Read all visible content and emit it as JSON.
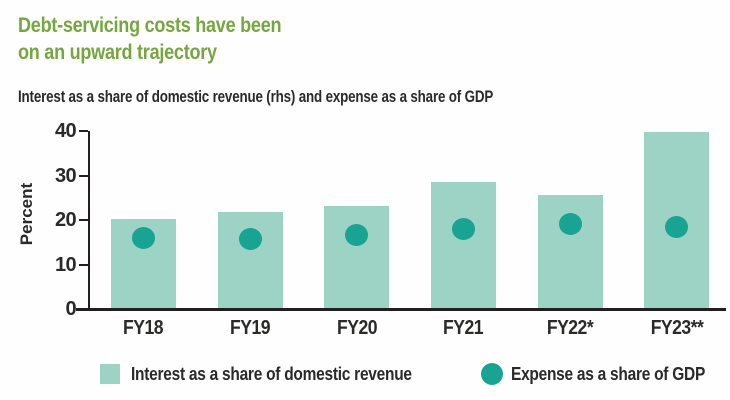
{
  "header": {
    "title": "Debt-servicing costs have been\non an upward trajectory",
    "subtitle": "Interest as a share of domestic revenue (rhs) and expense as a share of GDP"
  },
  "colors": {
    "title_green": "#76a63f",
    "bar_fill": "#9dd3c4",
    "dot_fill": "#18a392",
    "axis": "#231f20",
    "text": "#2b2a29"
  },
  "chart_data": {
    "type": "bar",
    "categories": [
      "FY18",
      "FY19",
      "FY20",
      "FY21",
      "FY22*",
      "FY23**"
    ],
    "series": [
      {
        "name": "Interest as a share of domestic revenue",
        "type": "bar",
        "values": [
          20.3,
          21.9,
          23.1,
          28.6,
          25.7,
          39.8
        ],
        "color": "#9dd3c4"
      },
      {
        "name": "Expense as a share of GDP",
        "type": "point",
        "values": [
          15.9,
          15.7,
          16.6,
          18.0,
          19.2,
          18.4
        ],
        "color": "#18a392"
      }
    ],
    "title": "Debt-servicing costs have been on an upward trajectory",
    "xlabel": "",
    "ylabel": "Percent",
    "ylim": [
      0,
      40
    ],
    "yticks": [
      0,
      10,
      20,
      30,
      40
    ],
    "grid": false,
    "legend_position": "bottom"
  }
}
